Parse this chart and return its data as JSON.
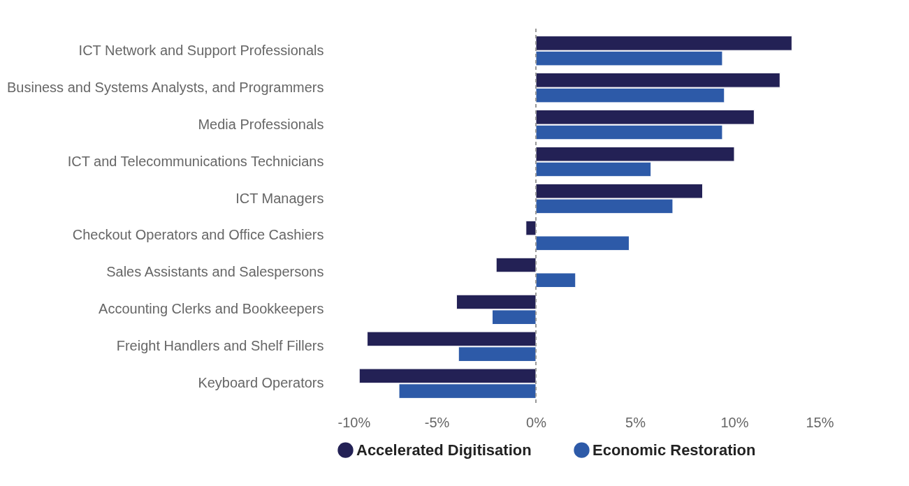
{
  "chart_data": {
    "type": "bar",
    "orientation": "horizontal",
    "categories": [
      "ICT Network and Support Professionals",
      "Business and Systems Analysts, and Programmers",
      "Media Professionals",
      "ICT and Telecommunications Technicians",
      "ICT Managers",
      "Checkout Operators and Office Cashiers",
      "Sales Assistants and Salespersons",
      "Accounting Clerks and Bookkeepers",
      "Freight Handlers and Shelf Fillers",
      "Keyboard Operators"
    ],
    "series": [
      {
        "name": "Accelerated Digitisation",
        "color": "#232155",
        "values": [
          12.9,
          12.3,
          11.0,
          10.0,
          8.4,
          -0.5,
          -2.0,
          -4.0,
          -8.5,
          -8.9
        ]
      },
      {
        "name": "Economic Restoration",
        "color": "#2d5aa8",
        "values": [
          9.4,
          9.5,
          9.4,
          5.8,
          6.9,
          4.7,
          2.0,
          -2.2,
          -3.9,
          -6.9
        ]
      }
    ],
    "xlim": [
      -10,
      15
    ],
    "xticks": [
      {
        "value": -10,
        "label": "-10%"
      },
      {
        "value": -5,
        "label": "-5%"
      },
      {
        "value": 0,
        "label": "0%"
      },
      {
        "value": 5,
        "label": "5%"
      },
      {
        "value": 10,
        "label": "10%"
      },
      {
        "value": 15,
        "label": "15%"
      }
    ],
    "ref_lines": [
      {
        "axis": "x",
        "value": 0,
        "color": "#999999",
        "line_style": "dashed"
      }
    ],
    "grid": false,
    "legend": "bottom"
  }
}
